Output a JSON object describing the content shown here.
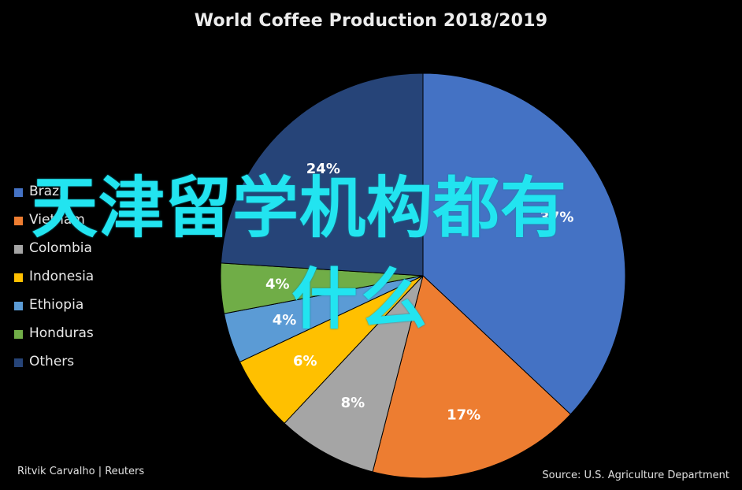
{
  "chart_data": {
    "type": "pie",
    "title": "World Coffee Production 2018/2019",
    "categories": [
      "Brazil",
      "Vietnam",
      "Colombia",
      "Indonesia",
      "Ethiopia",
      "Honduras",
      "Others"
    ],
    "values": [
      37,
      17,
      8,
      6,
      4,
      4,
      24
    ],
    "value_labels": [
      "37%",
      "17%",
      "8%",
      "6%",
      "4%",
      "4%",
      "24%"
    ],
    "colors": [
      "#4472c4",
      "#ed7d31",
      "#a5a5a5",
      "#ffc000",
      "#5b9bd5",
      "#70ad47",
      "#264478"
    ],
    "legend": "left",
    "legend_entries": [
      "Brazil",
      "Vietnam",
      "Colombia",
      "Indonesia",
      "Ethiopia",
      "Honduras",
      "Others"
    ]
  },
  "footer": {
    "credit": "Ritvik Carvalho | Reuters",
    "source": "Source: U.S. Agriculture Department"
  },
  "overlay": {
    "line1": "天津留学机构都有",
    "line2": "什么",
    "color": "#22e4f0"
  }
}
